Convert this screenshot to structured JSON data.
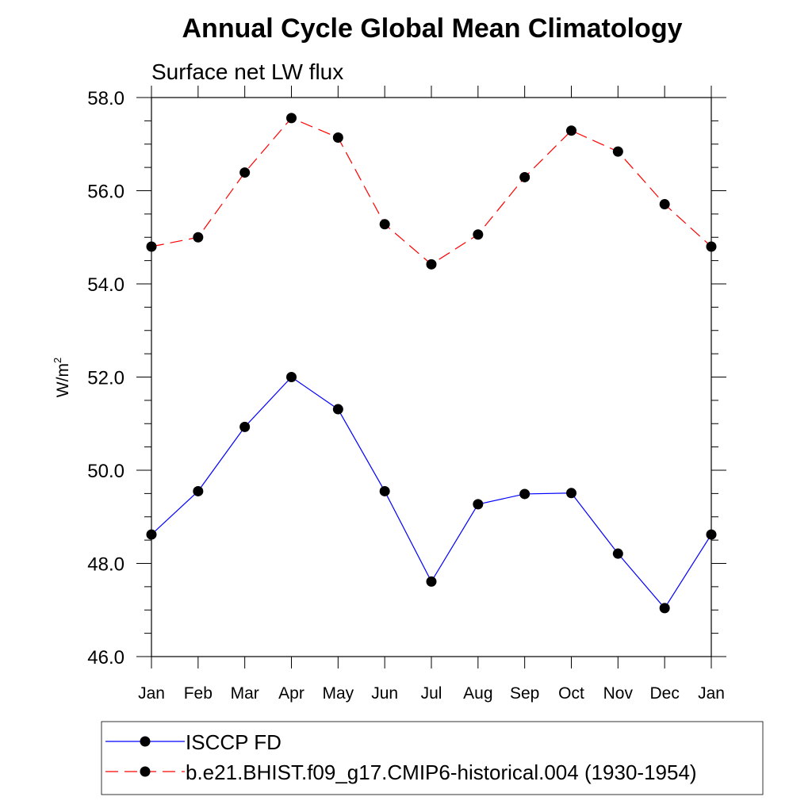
{
  "chart_data": {
    "type": "line",
    "title": "Annual Cycle Global Mean Climatology",
    "subtitle": "Surface net LW flux",
    "xlabel": "",
    "ylabel": "W/m",
    "ylabel_superscript": "2",
    "categories": [
      "Jan",
      "Feb",
      "Mar",
      "Apr",
      "May",
      "Jun",
      "Jul",
      "Aug",
      "Sep",
      "Oct",
      "Nov",
      "Dec",
      "Jan"
    ],
    "ylim": [
      46,
      58
    ],
    "yticks": [
      "46.0",
      "48.0",
      "50.0",
      "52.0",
      "54.0",
      "56.0",
      "58.0"
    ],
    "ytick_values": [
      46,
      48,
      50,
      52,
      54,
      56,
      58
    ],
    "y_minor_step": 0.5,
    "grid": false,
    "legend_placement": "bottom",
    "series": [
      {
        "name": "ISCCP FD",
        "color": "#0000ff",
        "dash": "solid",
        "marker": "filled-circle",
        "values": [
          48.62,
          49.55,
          50.93,
          52.0,
          51.31,
          49.55,
          47.61,
          49.27,
          49.49,
          49.51,
          48.21,
          47.04,
          48.62
        ]
      },
      {
        "name": "b.e21.BHIST.f09_g17.CMIP6-historical.004 (1930-1954)",
        "color": "#ff0000",
        "dash": "dashed",
        "marker": "filled-circle",
        "values": [
          54.8,
          55.0,
          56.39,
          57.56,
          57.14,
          55.28,
          54.42,
          55.06,
          56.29,
          57.29,
          56.84,
          55.71,
          54.8
        ]
      }
    ]
  }
}
